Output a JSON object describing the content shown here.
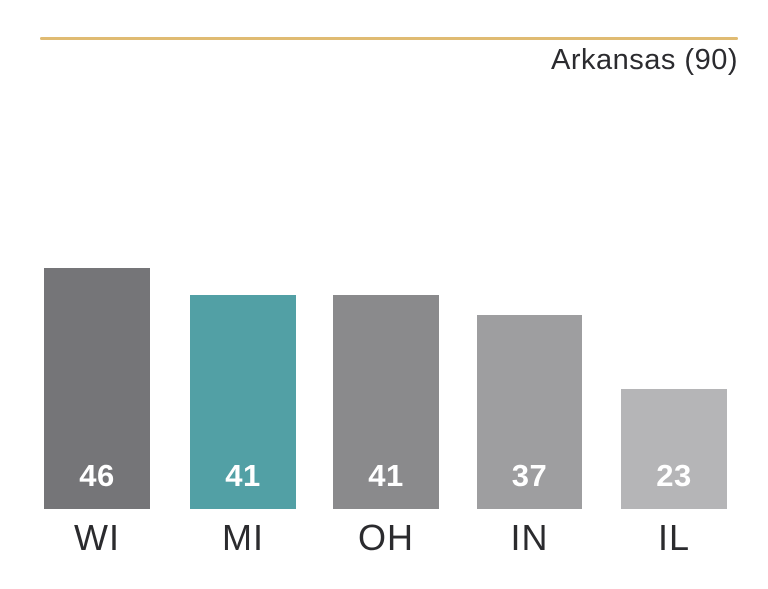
{
  "header": {
    "subtitle": "Arkansas (90)",
    "rule_color": "#e0bb72"
  },
  "chart_data": {
    "type": "bar",
    "title": "",
    "xlabel": "",
    "ylabel": "",
    "categories": [
      "WI",
      "MI",
      "OH",
      "IN",
      "IL"
    ],
    "values": [
      46,
      41,
      41,
      37,
      23
    ],
    "bar_colors": [
      "#757578",
      "#52a0a5",
      "#8a8a8c",
      "#9e9ea0",
      "#b5b5b7"
    ],
    "highlight_index": 1,
    "highlight_color": "#52a0a5",
    "value_label_color": "#ffffff",
    "ylim": [
      0,
      50
    ],
    "grid": "off",
    "legend": "none",
    "value_labels_position": "inside-bottom",
    "reference_label": "Arkansas (90)"
  }
}
